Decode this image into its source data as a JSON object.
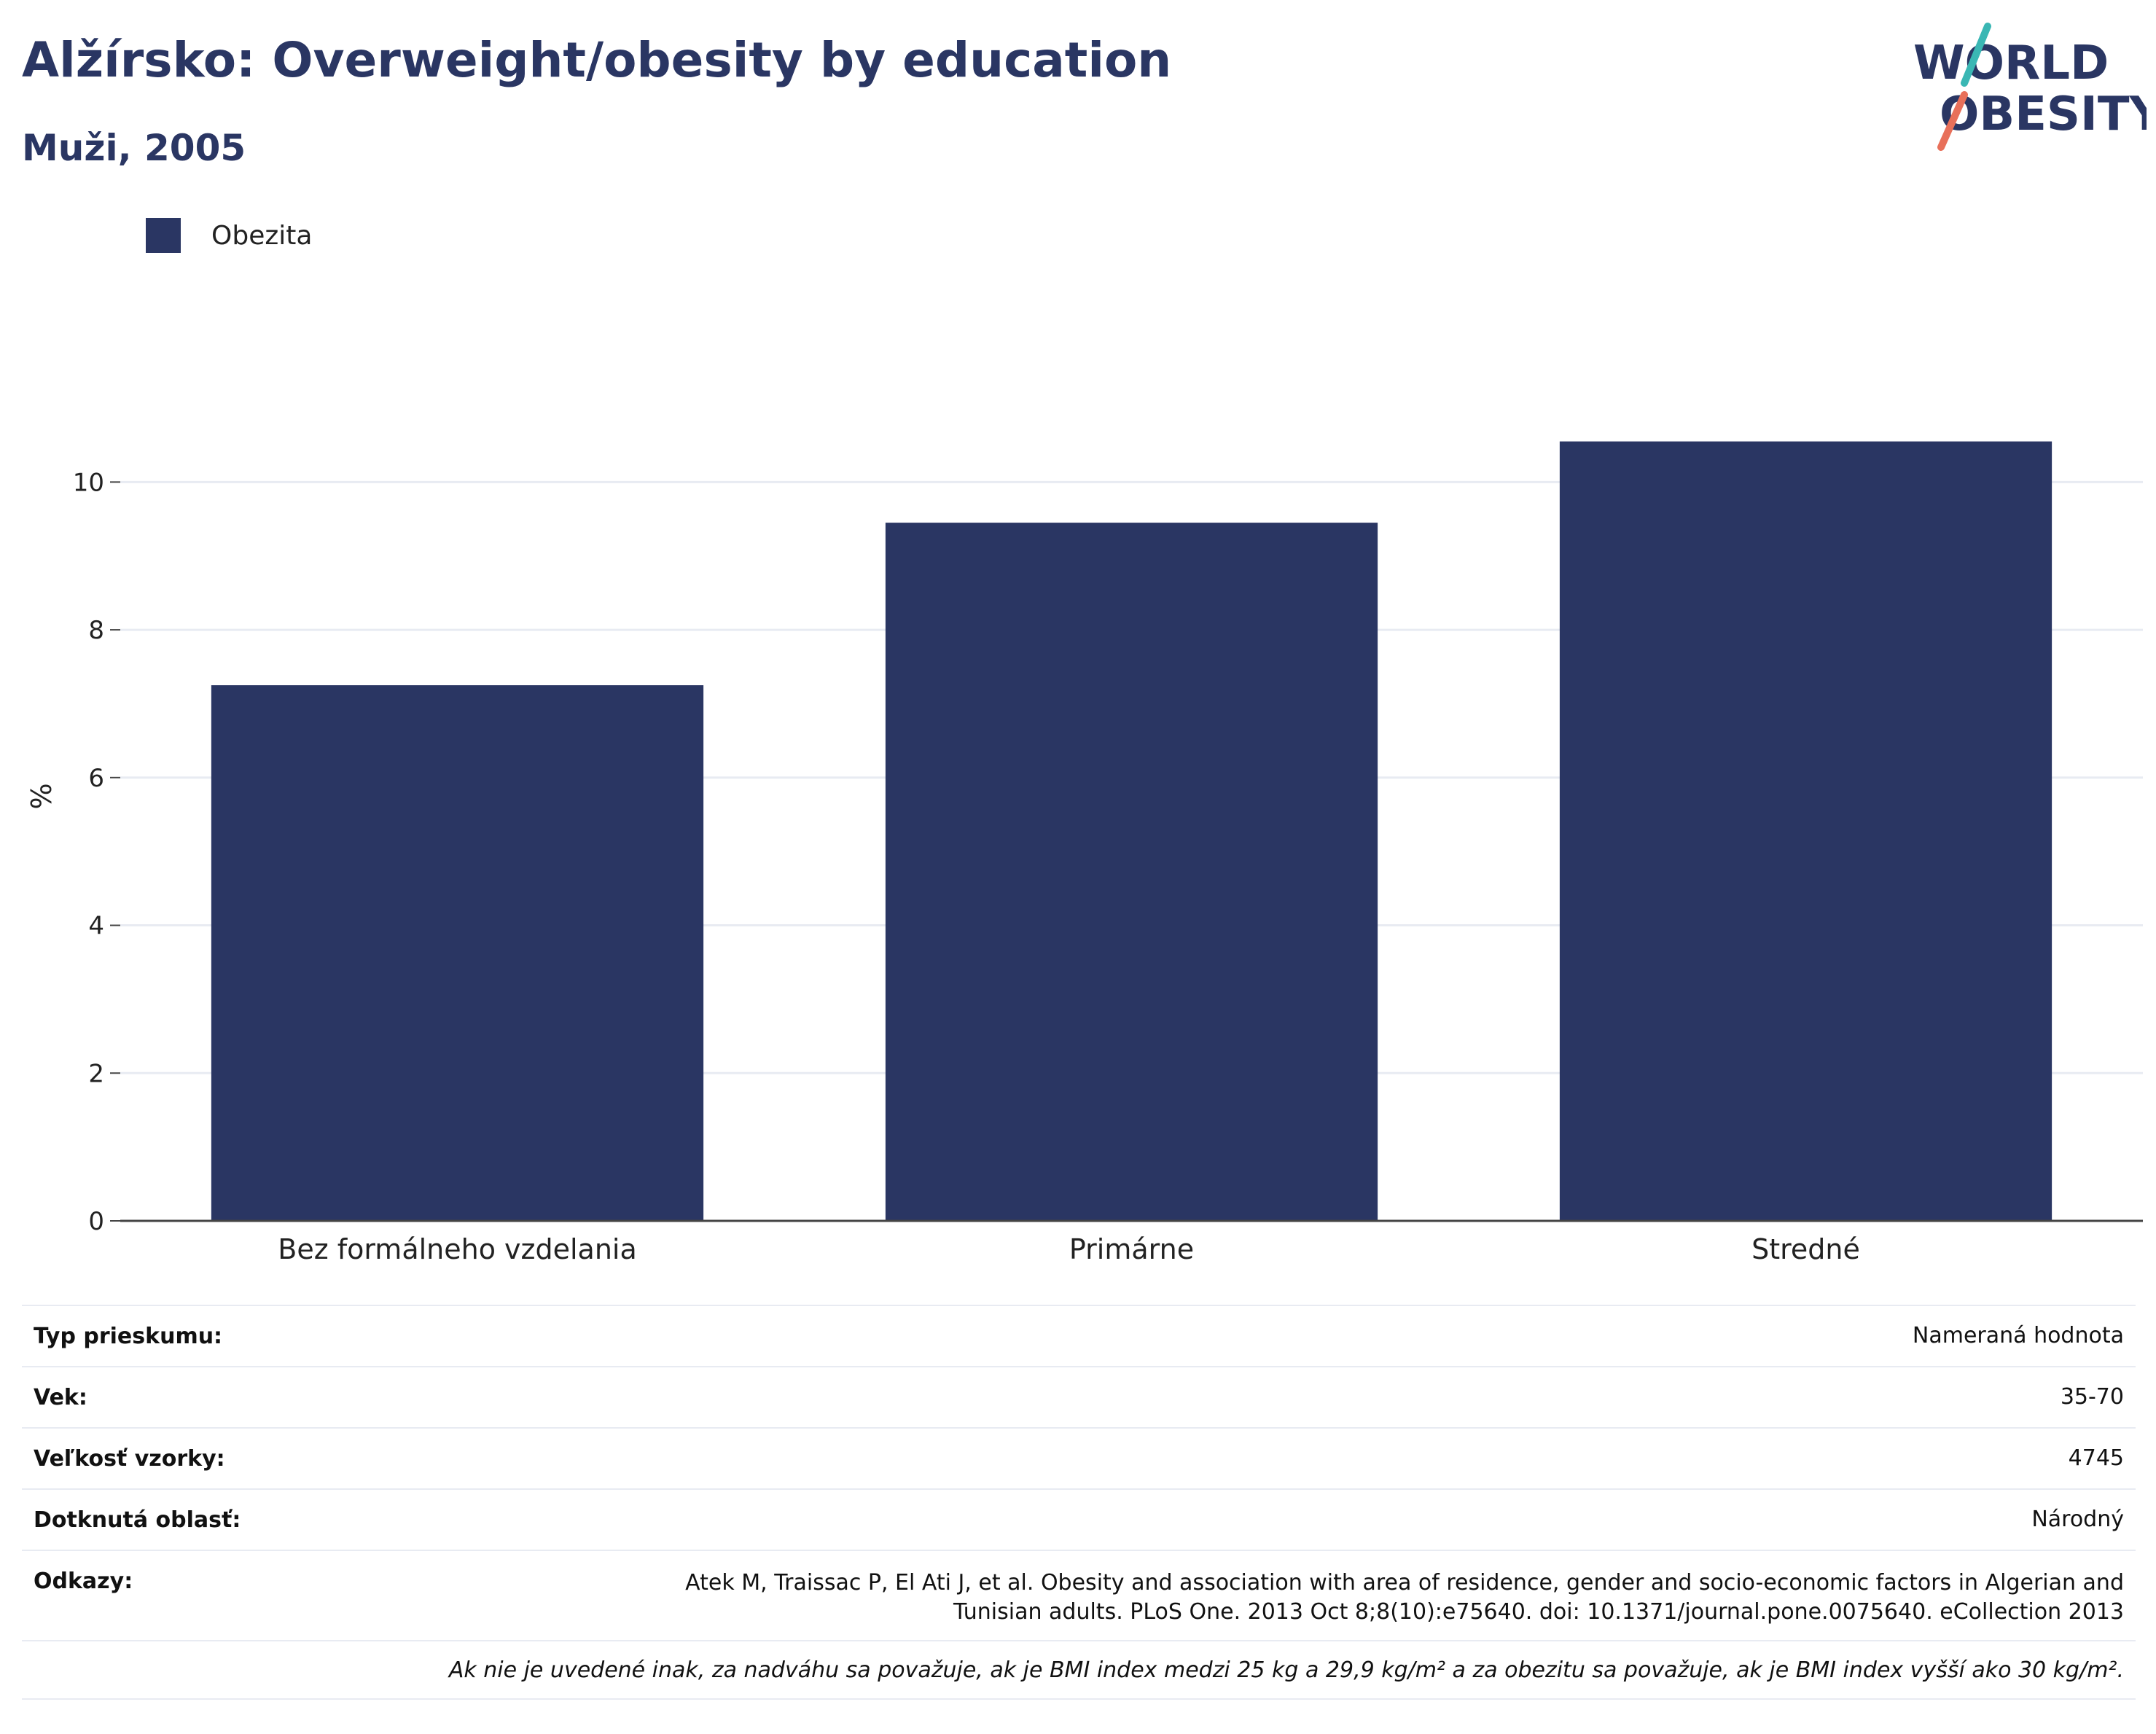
{
  "header": {
    "title": "Alžírsko: Overweight/obesity by education",
    "subtitle": "Muži, 2005"
  },
  "logo": {
    "line1": "WORLD",
    "line2": "OBESITY",
    "accent_colors": [
      "#3ab7b4",
      "#e8705a"
    ]
  },
  "chart_data": {
    "type": "bar",
    "categories": [
      "Bez formálneho vzdelania",
      "Primárne",
      "Stredné"
    ],
    "series": [
      {
        "name": "Obezita",
        "values": [
          7.25,
          9.45,
          10.55
        ],
        "color": "#2a3663"
      }
    ],
    "ylabel": "%",
    "ylim": [
      0,
      11
    ],
    "yticks": [
      0,
      2,
      4,
      6,
      8,
      10
    ],
    "grid": true,
    "legend_position": "top-left"
  },
  "info": {
    "rows": [
      {
        "key": "Typ prieskumu:",
        "value": "Nameraná hodnota"
      },
      {
        "key": "Vek:",
        "value": "35-70"
      },
      {
        "key": "Veľkosť vzorky:",
        "value": "4745"
      },
      {
        "key": "Dotknutá oblasť:",
        "value": "Národný"
      }
    ],
    "references_key": "Odkazy:",
    "references_line1": "Atek M, Traissac P, El Ati J, et al. Obesity and association with area of residence, gender and socio-economic factors in Algerian and",
    "references_line2": "Tunisian adults. PLoS One. 2013 Oct 8;8(10):e75640. doi: 10.1371/journal.pone.0075640. eCollection 2013",
    "note": "Ak nie je uvedené inak, za nadváhu sa považuje, ak je BMI index medzi 25 kg a 29,9 kg/m² a za obezitu sa považuje, ak je BMI index vyšší ako 30 kg/m²."
  }
}
